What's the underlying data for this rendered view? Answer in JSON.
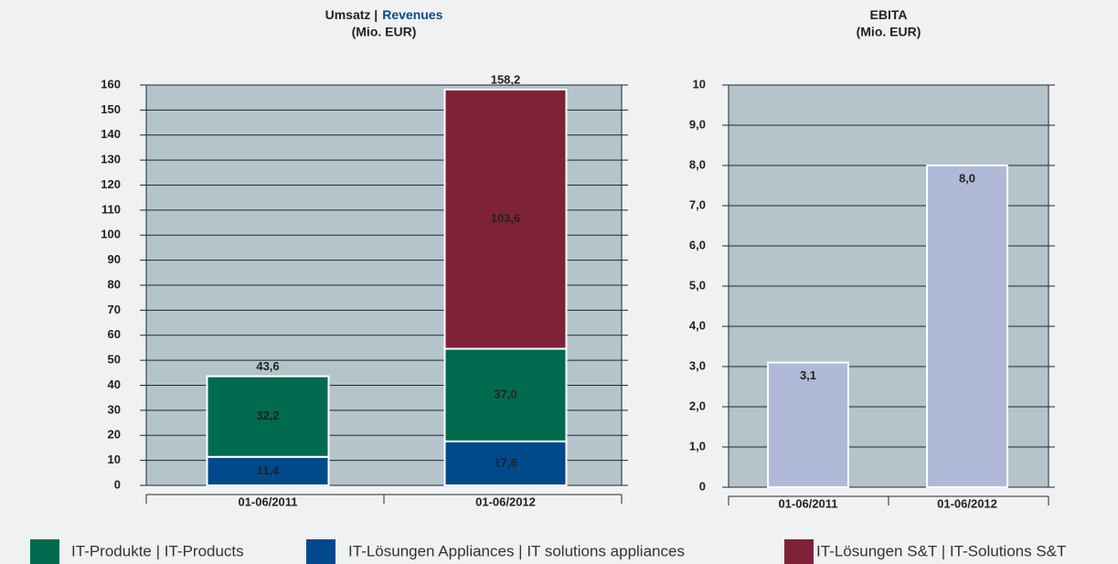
{
  "chart_data": [
    {
      "type": "bar",
      "stacked": true,
      "title": "Umsatz |",
      "title_highlight": "Revenues",
      "subtitle": "(Mio. EUR)",
      "categories": [
        "01-06/2011",
        "01-06/2012"
      ],
      "series": [
        {
          "name": "IT-Produkte | IT-Products",
          "color": "#006b4f",
          "values": [
            32.2,
            37.0
          ],
          "value_labels": [
            "32,2",
            "37,0"
          ]
        },
        {
          "name": "IT-Lösungen Appliances | IT solutions appliances",
          "color": "#004a8c",
          "values": [
            11.4,
            17.6
          ],
          "value_labels": [
            "11,4",
            "17,6"
          ]
        },
        {
          "name": "IT-Lösungen S&T | IT-Solutions S&T",
          "color": "#7e2337",
          "values": [
            null,
            103.6
          ],
          "value_labels": [
            null,
            "103,6"
          ]
        }
      ],
      "totals": [
        43.6,
        158.2
      ],
      "total_labels": [
        "43,6",
        "158,2"
      ],
      "ylim": [
        0,
        160
      ],
      "yticks": [
        0,
        10,
        20,
        30,
        40,
        50,
        60,
        70,
        80,
        90,
        100,
        110,
        120,
        130,
        140,
        150,
        160
      ],
      "grid": true
    },
    {
      "type": "bar",
      "title": "EBITA",
      "subtitle": "(Mio. EUR)",
      "categories": [
        "01-06/2011",
        "01-06/2012"
      ],
      "values": [
        3.1,
        8.0
      ],
      "value_labels": [
        "3,1",
        "8,0"
      ],
      "color": "#b1b9d8",
      "ylim": [
        0,
        10
      ],
      "yticks": [
        0,
        {
          "value": 1,
          "label": "1,0"
        },
        {
          "value": 2,
          "label": "2,0"
        },
        {
          "value": 3,
          "label": "3,0"
        },
        {
          "value": 4,
          "label": "4,0"
        },
        {
          "value": 5,
          "label": "5,0"
        },
        {
          "value": 6,
          "label": "6,0"
        },
        {
          "value": 7,
          "label": "7,0"
        },
        {
          "value": 8,
          "label": "8,0"
        },
        {
          "value": 9,
          "label": "9,0"
        },
        10
      ],
      "grid": true
    }
  ]
}
